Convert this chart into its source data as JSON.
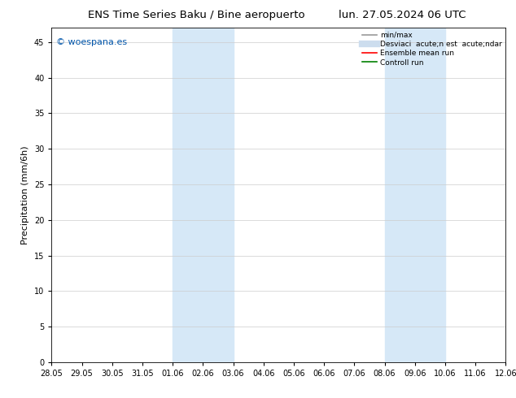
{
  "title_left": "ENS Time Series Baku / Bine aeropuerto",
  "title_right": "lun. 27.05.2024 06 UTC",
  "ylabel": "Precipitation (mm/6h)",
  "ylim": [
    0,
    47
  ],
  "yticks": [
    0,
    5,
    10,
    15,
    20,
    25,
    30,
    35,
    40,
    45
  ],
  "xtick_labels": [
    "28.05",
    "29.05",
    "30.05",
    "31.05",
    "01.06",
    "02.06",
    "03.06",
    "04.06",
    "05.06",
    "06.06",
    "07.06",
    "08.06",
    "09.06",
    "10.06",
    "11.06",
    "12.06"
  ],
  "shaded_regions": [
    {
      "xstart": "01.06",
      "xend": "03.06",
      "color": "#d6e8f7"
    },
    {
      "xstart": "08.06",
      "xend": "10.06",
      "color": "#d6e8f7"
    }
  ],
  "watermark_text": "© woespana.es",
  "watermark_color": "#0055aa",
  "legend_entries": [
    {
      "label": "min/max",
      "color": "#999999",
      "lw": 1.2,
      "ls": "-"
    },
    {
      "label": "Desviaci  acute;n est  acute;ndar",
      "color": "#ccddee",
      "lw": 6,
      "ls": "-"
    },
    {
      "label": "Ensemble mean run",
      "color": "red",
      "lw": 1.2,
      "ls": "-"
    },
    {
      "label": "Controll run",
      "color": "green",
      "lw": 1.2,
      "ls": "-"
    }
  ],
  "bg_color": "#ffffff",
  "plot_bg_color": "#ffffff",
  "grid_color": "#cccccc",
  "title_fontsize": 9.5,
  "tick_fontsize": 7,
  "ylabel_fontsize": 8,
  "watermark_fontsize": 8,
  "legend_fontsize": 6.5
}
